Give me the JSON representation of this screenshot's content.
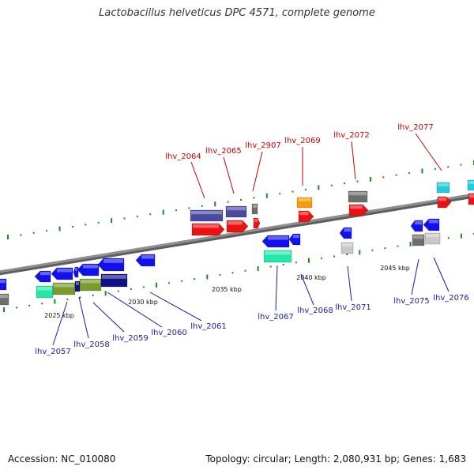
{
  "title": "Lactobacillus helveticus DPC 4571, complete genome",
  "footer": {
    "accession": "Accession: NC_010080",
    "summary": "Topology: circular; Length: 2,080,931 bp; Genes: 1,683"
  },
  "colors": {
    "top_label": "#cc0000",
    "bottom_label": "#1a1aa8",
    "tick": "#1d8a1d",
    "backbone": "#8f8f8f"
  },
  "kbp_labels": [
    {
      "text": "2025 kbp",
      "kbp": 2025
    },
    {
      "text": "2030 kbp",
      "kbp": 2030
    },
    {
      "text": "2035 kbp",
      "kbp": 2035
    },
    {
      "text": "2040 kbp",
      "kbp": 2040
    },
    {
      "text": "2045 kbp",
      "kbp": 2045
    }
  ],
  "top_labels": [
    "lhv_2064",
    "lhv_2065",
    "lhv_2907",
    "lhv_2069",
    "lhv_2072",
    "lhv_2077"
  ],
  "bottom_labels": [
    "lhv_2057",
    "lhv_2058",
    "lhv_2059",
    "lhv_2060",
    "lhv_2061",
    "lhv_2067",
    "lhv_2068",
    "lhv_2071",
    "lhv_2075",
    "lhv_2076"
  ]
}
